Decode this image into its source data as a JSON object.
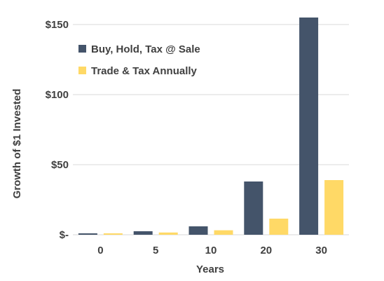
{
  "chart_data": {
    "type": "bar",
    "categories": [
      "0",
      "5",
      "10",
      "20",
      "30"
    ],
    "series": [
      {
        "name": "Buy, Hold, Tax @ Sale",
        "values": [
          1,
          2.5,
          6,
          38,
          155
        ]
      },
      {
        "name": "Trade & Tax Annually",
        "values": [
          1,
          1.6,
          3.2,
          11.5,
          39
        ]
      }
    ],
    "colors": [
      "#44546A",
      "#FFD966"
    ],
    "title": "",
    "xlabel": "Years",
    "ylabel": "Growth of $1 Invested",
    "ylim": [
      0,
      150
    ],
    "yticks": [
      {
        "value": 0,
        "label": "$-"
      },
      {
        "value": 50,
        "label": "$50"
      },
      {
        "value": 100,
        "label": "$100"
      },
      {
        "value": 150,
        "label": "$150"
      }
    ],
    "grid": true,
    "legend_position": "top-left"
  }
}
